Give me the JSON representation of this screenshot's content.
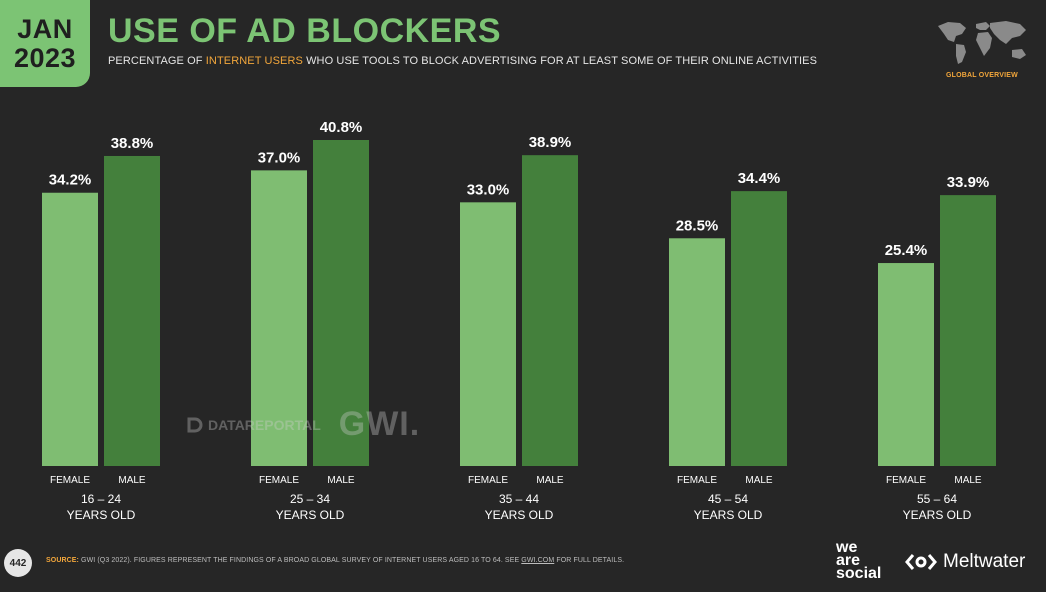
{
  "header": {
    "date_month": "JAN",
    "date_year": "2023",
    "title": "USE OF AD BLOCKERS",
    "subtitle_pre": "PERCENTAGE OF ",
    "subtitle_highlight": "INTERNET USERS",
    "subtitle_post": " WHO USE TOOLS TO BLOCK ADVERTISING FOR AT LEAST SOME OF THEIR ONLINE ACTIVITIES",
    "section_label": "GLOBAL OVERVIEW"
  },
  "colors": {
    "background": "#262626",
    "accent_green": "#7cc474",
    "female_bar": "#7fbd72",
    "male_bar": "#44803c",
    "orange": "#f2a63b"
  },
  "watermark": {
    "datareportal": "DATAREPORTAL",
    "gwi": "GWI."
  },
  "footer": {
    "page_number": "442",
    "source_label": "SOURCE:",
    "source_text": " GWI (Q3 2022). FIGURES REPRESENT THE FINDINGS OF A BROAD GLOBAL SURVEY OF INTERNET USERS AGED 16 TO 64. SEE ",
    "source_link": "GWI.COM",
    "source_end": " FOR FULL DETAILS.",
    "brand1_line1": "we",
    "brand1_line2": "are",
    "brand1_line3": "social",
    "brand2": "Meltwater"
  },
  "chart_data": {
    "type": "bar",
    "categories": [
      "16 – 24",
      "25 – 34",
      "35 – 44",
      "45 – 54",
      "55 – 64"
    ],
    "category_suffix": "YEARS OLD",
    "series": [
      {
        "name": "FEMALE",
        "values": [
          34.2,
          37.0,
          33.0,
          28.5,
          25.4
        ]
      },
      {
        "name": "MALE",
        "values": [
          38.8,
          40.8,
          38.9,
          34.4,
          33.9
        ]
      }
    ],
    "value_format": "percent_1dp",
    "ylim": [
      0,
      40.8
    ]
  }
}
